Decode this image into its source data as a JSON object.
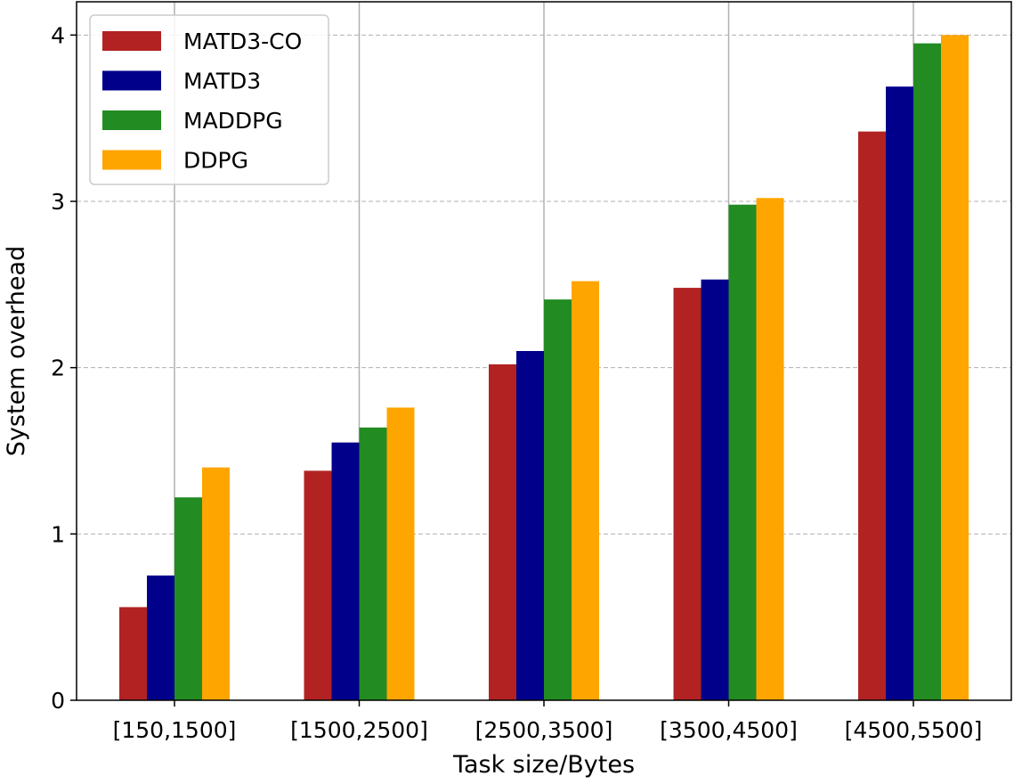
{
  "chart_data": {
    "type": "bar",
    "title": "",
    "xlabel": "Task size/Bytes",
    "ylabel": "System overhead",
    "categories": [
      "[150,1500]",
      "[1500,2500]",
      "[2500,3500]",
      "[3500,4500]",
      "[4500,5500]"
    ],
    "yticks": [
      0,
      1,
      2,
      3,
      4
    ],
    "ylim": [
      0,
      4.2
    ],
    "grid": {
      "y": "dashed",
      "x": "solid at category centers"
    },
    "legend_position": "top-left",
    "series": [
      {
        "name": "MATD3-CO",
        "color": "#b22222",
        "values": [
          0.56,
          1.38,
          2.02,
          2.48,
          3.42
        ]
      },
      {
        "name": "MATD3",
        "color": "#00008b",
        "values": [
          0.75,
          1.55,
          2.1,
          2.53,
          3.69
        ]
      },
      {
        "name": "MADDPG",
        "color": "#228b22",
        "values": [
          1.22,
          1.64,
          2.41,
          2.98,
          3.95
        ]
      },
      {
        "name": "DDPG",
        "color": "#ffa500",
        "values": [
          1.4,
          1.76,
          2.52,
          3.02,
          4.0
        ]
      }
    ]
  }
}
